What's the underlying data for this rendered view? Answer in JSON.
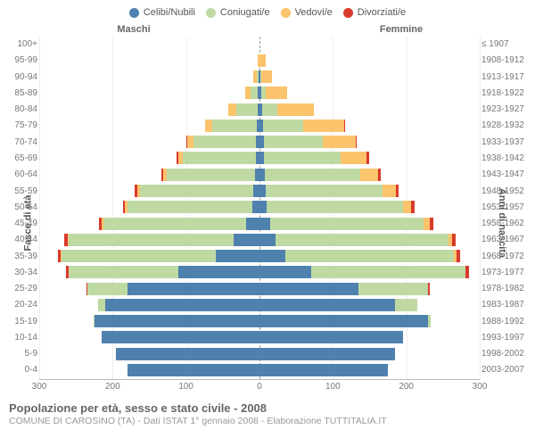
{
  "chart": {
    "type": "population-pyramid",
    "background_color": "#ffffff",
    "max_value": 300,
    "grid_color": "#eeeeee",
    "axis_color": "#bbbbbb",
    "tick_fontsize": 10,
    "tick_color": "#777777",
    "x_ticks_left": [
      300,
      200,
      100,
      0
    ],
    "x_ticks_right": [
      0,
      100,
      200,
      300
    ],
    "legend": [
      {
        "label": "Celibi/Nubili",
        "color": "#4f81af"
      },
      {
        "label": "Coniugati/e",
        "color": "#bfd9a3"
      },
      {
        "label": "Vedovi/e",
        "color": "#fbc36b"
      },
      {
        "label": "Divorziati/e",
        "color": "#d93a2b"
      }
    ],
    "headers": {
      "left": "Maschi",
      "right": "Femmine"
    },
    "y_title_left": "Fasce di età",
    "y_title_right": "Anni di nascita",
    "age_groups": [
      {
        "age": "100+",
        "birth": "≤ 1907",
        "m": {
          "single": 0,
          "married": 0,
          "widowed": 0,
          "divorced": 0
        },
        "f": {
          "single": 0,
          "married": 0,
          "widowed": 0,
          "divorced": 0
        }
      },
      {
        "age": "95-99",
        "birth": "1908-1912",
        "m": {
          "single": 0,
          "married": 0,
          "widowed": 3,
          "divorced": 0
        },
        "f": {
          "single": 0,
          "married": 0,
          "widowed": 8,
          "divorced": 0
        }
      },
      {
        "age": "90-94",
        "birth": "1913-1917",
        "m": {
          "single": 1,
          "married": 3,
          "widowed": 5,
          "divorced": 0
        },
        "f": {
          "single": 1,
          "married": 2,
          "widowed": 14,
          "divorced": 0
        }
      },
      {
        "age": "85-89",
        "birth": "1918-1922",
        "m": {
          "single": 2,
          "married": 10,
          "widowed": 8,
          "divorced": 0
        },
        "f": {
          "single": 2,
          "married": 6,
          "widowed": 30,
          "divorced": 0
        }
      },
      {
        "age": "80-84",
        "birth": "1923-1927",
        "m": {
          "single": 2,
          "married": 30,
          "widowed": 10,
          "divorced": 0
        },
        "f": {
          "single": 4,
          "married": 20,
          "widowed": 50,
          "divorced": 0
        }
      },
      {
        "age": "75-79",
        "birth": "1928-1932",
        "m": {
          "single": 4,
          "married": 60,
          "widowed": 10,
          "divorced": 0
        },
        "f": {
          "single": 5,
          "married": 55,
          "widowed": 55,
          "divorced": 2
        }
      },
      {
        "age": "70-74",
        "birth": "1933-1937",
        "m": {
          "single": 5,
          "married": 85,
          "widowed": 8,
          "divorced": 2
        },
        "f": {
          "single": 6,
          "married": 80,
          "widowed": 45,
          "divorced": 2
        }
      },
      {
        "age": "65-69",
        "birth": "1938-1942",
        "m": {
          "single": 5,
          "married": 100,
          "widowed": 6,
          "divorced": 2
        },
        "f": {
          "single": 6,
          "married": 105,
          "widowed": 35,
          "divorced": 3
        }
      },
      {
        "age": "60-64",
        "birth": "1943-1947",
        "m": {
          "single": 6,
          "married": 120,
          "widowed": 5,
          "divorced": 3
        },
        "f": {
          "single": 7,
          "married": 130,
          "widowed": 25,
          "divorced": 3
        }
      },
      {
        "age": "55-59",
        "birth": "1948-1952",
        "m": {
          "single": 8,
          "married": 155,
          "widowed": 4,
          "divorced": 3
        },
        "f": {
          "single": 8,
          "married": 160,
          "widowed": 18,
          "divorced": 4
        }
      },
      {
        "age": "50-54",
        "birth": "1953-1957",
        "m": {
          "single": 10,
          "married": 170,
          "widowed": 3,
          "divorced": 3
        },
        "f": {
          "single": 10,
          "married": 185,
          "widowed": 12,
          "divorced": 4
        }
      },
      {
        "age": "45-49",
        "birth": "1958-1962",
        "m": {
          "single": 18,
          "married": 195,
          "widowed": 2,
          "divorced": 4
        },
        "f": {
          "single": 14,
          "married": 210,
          "widowed": 8,
          "divorced": 5
        }
      },
      {
        "age": "40-44",
        "birth": "1963-1967",
        "m": {
          "single": 35,
          "married": 225,
          "widowed": 1,
          "divorced": 5
        },
        "f": {
          "single": 22,
          "married": 235,
          "widowed": 5,
          "divorced": 5
        }
      },
      {
        "age": "35-39",
        "birth": "1968-1972",
        "m": {
          "single": 60,
          "married": 210,
          "widowed": 1,
          "divorced": 4
        },
        "f": {
          "single": 35,
          "married": 230,
          "widowed": 3,
          "divorced": 5
        }
      },
      {
        "age": "30-34",
        "birth": "1973-1977",
        "m": {
          "single": 110,
          "married": 150,
          "widowed": 0,
          "divorced": 3
        },
        "f": {
          "single": 70,
          "married": 210,
          "widowed": 1,
          "divorced": 4
        }
      },
      {
        "age": "25-29",
        "birth": "1978-1982",
        "m": {
          "single": 180,
          "married": 55,
          "widowed": 0,
          "divorced": 1
        },
        "f": {
          "single": 135,
          "married": 95,
          "widowed": 0,
          "divorced": 2
        }
      },
      {
        "age": "20-24",
        "birth": "1983-1987",
        "m": {
          "single": 210,
          "married": 10,
          "widowed": 0,
          "divorced": 0
        },
        "f": {
          "single": 185,
          "married": 30,
          "widowed": 0,
          "divorced": 0
        }
      },
      {
        "age": "15-19",
        "birth": "1988-1992",
        "m": {
          "single": 225,
          "married": 1,
          "widowed": 0,
          "divorced": 0
        },
        "f": {
          "single": 230,
          "married": 3,
          "widowed": 0,
          "divorced": 0
        }
      },
      {
        "age": "10-14",
        "birth": "1993-1997",
        "m": {
          "single": 215,
          "married": 0,
          "widowed": 0,
          "divorced": 0
        },
        "f": {
          "single": 195,
          "married": 0,
          "widowed": 0,
          "divorced": 0
        }
      },
      {
        "age": "5-9",
        "birth": "1998-2002",
        "m": {
          "single": 195,
          "married": 0,
          "widowed": 0,
          "divorced": 0
        },
        "f": {
          "single": 185,
          "married": 0,
          "widowed": 0,
          "divorced": 0
        }
      },
      {
        "age": "0-4",
        "birth": "2003-2007",
        "m": {
          "single": 180,
          "married": 0,
          "widowed": 0,
          "divorced": 0
        },
        "f": {
          "single": 175,
          "married": 0,
          "widowed": 0,
          "divorced": 0
        }
      }
    ]
  },
  "footer": {
    "title": "Popolazione per età, sesso e stato civile - 2008",
    "subtitle": "COMUNE DI CAROSINO (TA) - Dati ISTAT 1° gennaio 2008 - Elaborazione TUTTITALIA.IT"
  }
}
